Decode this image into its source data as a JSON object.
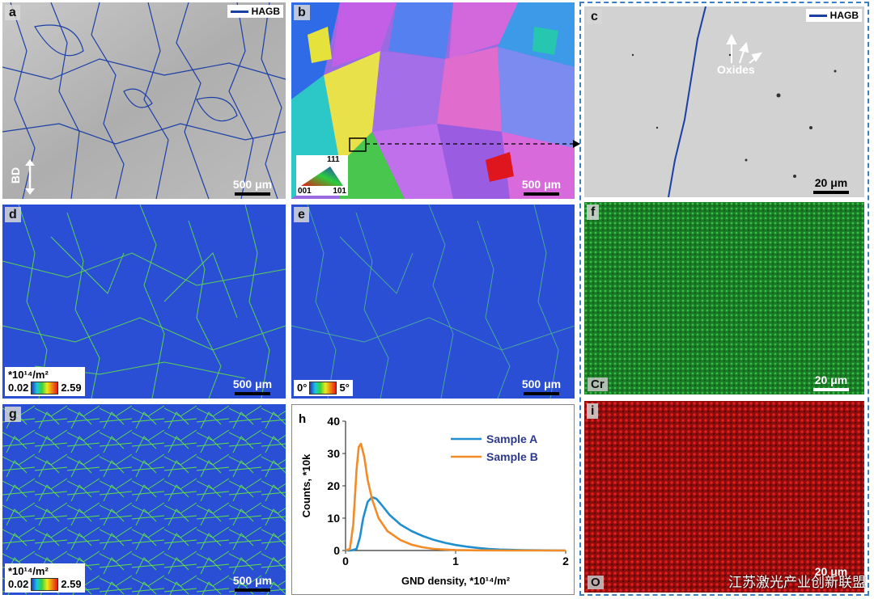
{
  "panels": {
    "a": {
      "label": "a",
      "legend": "HAGB",
      "direction": "BD",
      "scale": "500 μm"
    },
    "b": {
      "label": "b",
      "scale": "500 μm",
      "ipf": {
        "top": "111",
        "left": "001",
        "right": "101"
      }
    },
    "c": {
      "label": "c",
      "legend": "HAGB",
      "annotation": "Oxides",
      "scale": "20 μm"
    },
    "d": {
      "label": "d",
      "unit": "*10¹⁴/m²",
      "min": "0.02",
      "max": "2.59",
      "scale": "500 μm"
    },
    "e": {
      "label": "e",
      "min": "0°",
      "max": "5°",
      "scale": "500 μm"
    },
    "f": {
      "label": "f",
      "element": "Cr",
      "scale": "20 μm"
    },
    "g": {
      "label": "g",
      "unit": "*10¹⁴/m²",
      "min": "0.02",
      "max": "2.59",
      "scale": "500 μm"
    },
    "i": {
      "label": "i",
      "element": "O",
      "scale": "20 μm"
    }
  },
  "chart_data": {
    "label": "h",
    "type": "line",
    "xlabel": "GND density, *10¹⁴/m²",
    "ylabel": "Counts, *10k",
    "xlim": [
      0,
      2
    ],
    "ylim": [
      0,
      40
    ],
    "xticks": [
      "0",
      "1",
      "2"
    ],
    "yticks": [
      "0",
      "10",
      "20",
      "30",
      "40"
    ],
    "legend": "top-right",
    "series": [
      {
        "name": "Sample A",
        "color": "#1f8fcf",
        "x": [
          0,
          0.05,
          0.1,
          0.13,
          0.16,
          0.2,
          0.24,
          0.28,
          0.33,
          0.4,
          0.5,
          0.6,
          0.7,
          0.8,
          0.9,
          1.0,
          1.1,
          1.2,
          1.3,
          1.4,
          1.6,
          2.0
        ],
        "y": [
          0,
          0,
          0.5,
          4,
          10,
          15,
          16.5,
          16,
          14,
          11,
          8,
          6,
          4.5,
          3.3,
          2.4,
          1.7,
          1.2,
          0.8,
          0.5,
          0.3,
          0.1,
          0
        ]
      },
      {
        "name": "Sample B",
        "color": "#f28c28",
        "x": [
          0,
          0.04,
          0.07,
          0.1,
          0.12,
          0.14,
          0.17,
          0.2,
          0.24,
          0.3,
          0.38,
          0.5,
          0.6,
          0.7,
          0.8,
          0.9,
          1.0,
          1.2,
          1.5,
          2.0
        ],
        "y": [
          0,
          0.5,
          8,
          25,
          32,
          33,
          29,
          22,
          16,
          10,
          6,
          3.2,
          1.8,
          1.0,
          0.5,
          0.3,
          0.15,
          0.05,
          0,
          0
        ]
      }
    ]
  },
  "watermark": "江苏激光产业创新联盟",
  "colors": {
    "frame": "#3b7fc4",
    "hagb": "#1c3fa6",
    "gnd_bg": "#2a4fd4",
    "gnd_line": "#5fe04a",
    "cr": "#1c8a2a",
    "o": "#c51010"
  }
}
